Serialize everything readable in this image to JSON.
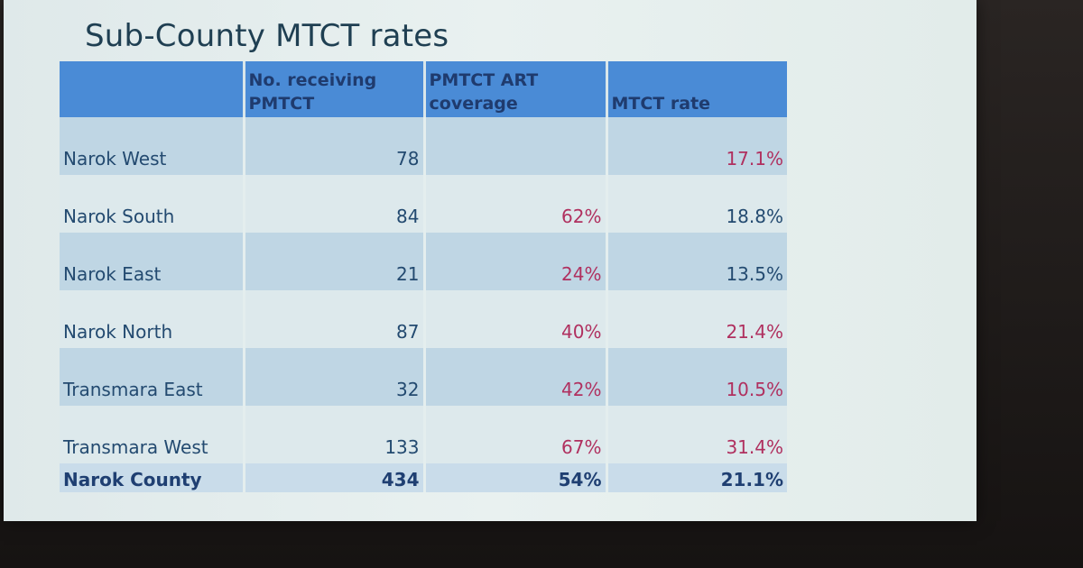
{
  "slide": {
    "title": "Sub-County MTCT rates"
  },
  "table": {
    "headers": [
      "",
      "No. receiving PMTCT",
      "PMTCT ART coverage",
      "MTCT rate"
    ],
    "rows": [
      {
        "name": "Narok West",
        "receiving": "78",
        "coverage": "",
        "rate": "17.1%"
      },
      {
        "name": "Narok South",
        "receiving": "84",
        "coverage": "62%",
        "rate": "18.8%"
      },
      {
        "name": "Narok East",
        "receiving": "21",
        "coverage": "24%",
        "rate": "13.5%"
      },
      {
        "name": "Narok North",
        "receiving": "87",
        "coverage": "40%",
        "rate": "21.4%"
      },
      {
        "name": "Transmara East",
        "receiving": "32",
        "coverage": "42%",
        "rate": "10.5%"
      },
      {
        "name": "Transmara West",
        "receiving": "133",
        "coverage": "67%",
        "rate": "31.4%"
      }
    ],
    "total": {
      "name": "Narok County",
      "receiving": "434",
      "coverage": "54%",
      "rate": "21.1%"
    }
  },
  "colors": {
    "header_bg": "#4a8bd6",
    "row_band_dark": "#bfd6e4",
    "row_band_light": "#dde9ec",
    "text_blue": "#234a70",
    "text_red": "#b0305f"
  }
}
